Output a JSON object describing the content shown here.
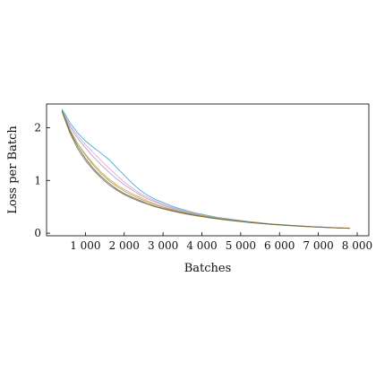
{
  "chart_data": {
    "type": "line",
    "title": "",
    "xlabel": "Batches",
    "ylabel": "Loss per Batch",
    "xlim": [
      0,
      8300
    ],
    "ylim": [
      -0.05,
      2.45
    ],
    "xticks": [
      1000,
      2000,
      3000,
      4000,
      5000,
      6000,
      7000,
      8000
    ],
    "xtick_labels": [
      "1 000",
      "2 000",
      "3 000",
      "4 000",
      "5 000",
      "6 000",
      "7 000",
      "8 000"
    ],
    "yticks": [
      0,
      1,
      2
    ],
    "ytick_labels": [
      "0",
      "1",
      "2"
    ],
    "grid": false,
    "legend": "none",
    "x": [
      400,
      600,
      800,
      1000,
      1200,
      1400,
      1600,
      1800,
      2000,
      2200,
      2400,
      2600,
      2800,
      3000,
      3200,
      3400,
      3600,
      3800,
      4000,
      4200,
      4400,
      4600,
      4800,
      5000,
      5200,
      5400,
      5600,
      5800,
      6000,
      6200,
      6400,
      6600,
      6800,
      7000,
      7200,
      7400,
      7600,
      7800
    ],
    "series": [
      {
        "color": "#2ca9d8",
        "values": [
          2.35,
          2.1,
          1.9,
          1.75,
          1.63,
          1.52,
          1.4,
          1.25,
          1.1,
          0.95,
          0.82,
          0.72,
          0.64,
          0.58,
          0.52,
          0.47,
          0.43,
          0.39,
          0.36,
          0.33,
          0.3,
          0.28,
          0.26,
          0.24,
          0.22,
          0.205,
          0.19,
          0.175,
          0.165,
          0.155,
          0.145,
          0.135,
          0.125,
          0.12,
          0.112,
          0.105,
          0.1,
          0.095
        ]
      },
      {
        "color": "#e8a0c8",
        "values": [
          2.32,
          2.05,
          1.85,
          1.68,
          1.53,
          1.38,
          1.24,
          1.1,
          0.97,
          0.86,
          0.76,
          0.68,
          0.61,
          0.55,
          0.5,
          0.45,
          0.41,
          0.38,
          0.35,
          0.32,
          0.295,
          0.27,
          0.25,
          0.23,
          0.215,
          0.2,
          0.185,
          0.172,
          0.16,
          0.15,
          0.14,
          0.132,
          0.124,
          0.117,
          0.11,
          0.104,
          0.098,
          0.094
        ]
      },
      {
        "color": "#9a9ad8",
        "values": [
          2.33,
          2.02,
          1.8,
          1.62,
          1.45,
          1.3,
          1.16,
          1.03,
          0.92,
          0.82,
          0.73,
          0.65,
          0.59,
          0.53,
          0.48,
          0.44,
          0.4,
          0.37,
          0.34,
          0.315,
          0.29,
          0.268,
          0.248,
          0.23,
          0.214,
          0.198,
          0.184,
          0.171,
          0.16,
          0.15,
          0.14,
          0.132,
          0.124,
          0.117,
          0.11,
          0.104,
          0.098,
          0.094
        ]
      },
      {
        "color": "#f0a030",
        "values": [
          2.3,
          1.95,
          1.7,
          1.5,
          1.32,
          1.16,
          1.03,
          0.92,
          0.83,
          0.75,
          0.68,
          0.61,
          0.55,
          0.5,
          0.46,
          0.42,
          0.39,
          0.36,
          0.335,
          0.31,
          0.285,
          0.265,
          0.245,
          0.228,
          0.212,
          0.197,
          0.183,
          0.171,
          0.16,
          0.15,
          0.14,
          0.132,
          0.124,
          0.117,
          0.11,
          0.104,
          0.098,
          0.094
        ]
      },
      {
        "color": "#9aa860",
        "values": [
          2.32,
          1.97,
          1.7,
          1.48,
          1.29,
          1.13,
          1.0,
          0.89,
          0.8,
          0.72,
          0.65,
          0.59,
          0.54,
          0.49,
          0.45,
          0.415,
          0.385,
          0.357,
          0.332,
          0.308,
          0.285,
          0.264,
          0.245,
          0.228,
          0.212,
          0.197,
          0.183,
          0.171,
          0.16,
          0.15,
          0.14,
          0.132,
          0.124,
          0.117,
          0.11,
          0.104,
          0.098,
          0.094
        ]
      },
      {
        "color": "#606060",
        "values": [
          2.31,
          1.93,
          1.65,
          1.42,
          1.23,
          1.08,
          0.95,
          0.84,
          0.75,
          0.68,
          0.62,
          0.56,
          0.51,
          0.47,
          0.435,
          0.4,
          0.37,
          0.343,
          0.318,
          0.295,
          0.274,
          0.255,
          0.237,
          0.221,
          0.206,
          0.192,
          0.179,
          0.167,
          0.156,
          0.146,
          0.137,
          0.129,
          0.121,
          0.114,
          0.108,
          0.102,
          0.096,
          0.092
        ]
      },
      {
        "color": "#8a6a3a",
        "values": [
          2.3,
          1.9,
          1.6,
          1.38,
          1.2,
          1.05,
          0.92,
          0.82,
          0.73,
          0.66,
          0.6,
          0.55,
          0.5,
          0.46,
          0.425,
          0.392,
          0.362,
          0.336,
          0.312,
          0.29,
          0.27,
          0.251,
          0.234,
          0.218,
          0.203,
          0.19,
          0.177,
          0.165,
          0.155,
          0.145,
          0.136,
          0.128,
          0.12,
          0.113,
          0.107,
          0.101,
          0.096,
          0.092
        ]
      }
    ]
  }
}
